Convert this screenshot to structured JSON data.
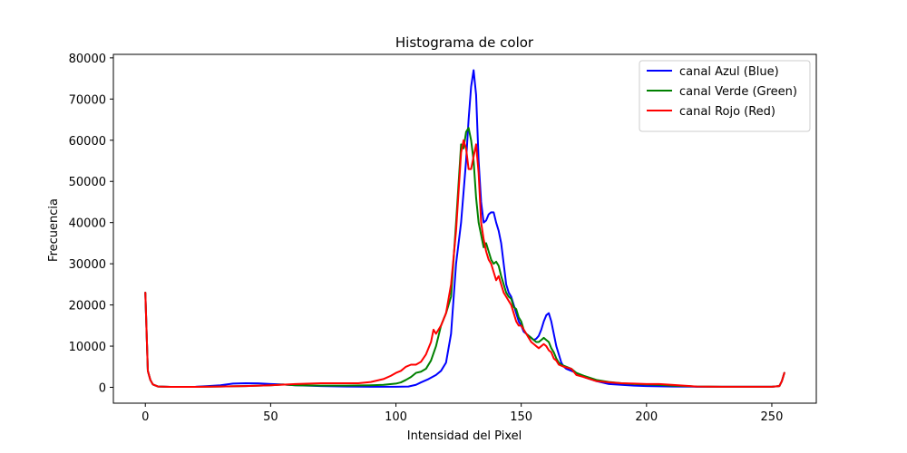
{
  "chart_data": {
    "type": "line",
    "title": "Histograma de color",
    "xlabel": "Intensidad del Pixel",
    "ylabel": "Frecuencia",
    "xlim": [
      -12.75,
      267.75
    ],
    "ylim": [
      -3850,
      80850
    ],
    "xticks": [
      0,
      50,
      100,
      150,
      200,
      250
    ],
    "yticks": [
      0,
      10000,
      20000,
      30000,
      40000,
      50000,
      60000,
      70000,
      80000
    ],
    "legend_position": "top-right",
    "series": [
      {
        "name": "canal Azul (Blue)",
        "color": "#0000ff",
        "points": [
          [
            0,
            23000
          ],
          [
            1,
            4000
          ],
          [
            2,
            1800
          ],
          [
            3,
            700
          ],
          [
            5,
            200
          ],
          [
            10,
            100
          ],
          [
            20,
            150
          ],
          [
            25,
            300
          ],
          [
            30,
            500
          ],
          [
            35,
            900
          ],
          [
            40,
            1000
          ],
          [
            45,
            950
          ],
          [
            50,
            800
          ],
          [
            55,
            700
          ],
          [
            60,
            500
          ],
          [
            70,
            300
          ],
          [
            80,
            200
          ],
          [
            90,
            150
          ],
          [
            100,
            150
          ],
          [
            105,
            200
          ],
          [
            108,
            600
          ],
          [
            110,
            1200
          ],
          [
            113,
            2000
          ],
          [
            116,
            3000
          ],
          [
            118,
            4000
          ],
          [
            120,
            6000
          ],
          [
            122,
            13000
          ],
          [
            124,
            30000
          ],
          [
            126,
            40000
          ],
          [
            128,
            55000
          ],
          [
            129,
            65000
          ],
          [
            130,
            73000
          ],
          [
            131,
            77000
          ],
          [
            132,
            71000
          ],
          [
            133,
            55000
          ],
          [
            134,
            45000
          ],
          [
            135,
            40000
          ],
          [
            136,
            40500
          ],
          [
            137,
            42000
          ],
          [
            138,
            42500
          ],
          [
            139,
            42500
          ],
          [
            140,
            40000
          ],
          [
            141,
            38000
          ],
          [
            142,
            35000
          ],
          [
            143,
            30000
          ],
          [
            144,
            25000
          ],
          [
            145,
            23000
          ],
          [
            146,
            22000
          ],
          [
            147,
            20000
          ],
          [
            148,
            18000
          ],
          [
            149,
            16000
          ],
          [
            150,
            15000
          ],
          [
            151,
            13500
          ],
          [
            152,
            13000
          ],
          [
            153,
            12500
          ],
          [
            154,
            12000
          ],
          [
            155,
            11500
          ],
          [
            156,
            11800
          ],
          [
            157,
            12500
          ],
          [
            158,
            14000
          ],
          [
            159,
            16000
          ],
          [
            160,
            17500
          ],
          [
            161,
            18000
          ],
          [
            162,
            16000
          ],
          [
            163,
            13000
          ],
          [
            164,
            10000
          ],
          [
            165,
            8000
          ],
          [
            166,
            6000
          ],
          [
            167,
            5000
          ],
          [
            168,
            4500
          ],
          [
            170,
            4000
          ],
          [
            172,
            3500
          ],
          [
            175,
            2500
          ],
          [
            180,
            1500
          ],
          [
            185,
            800
          ],
          [
            190,
            600
          ],
          [
            195,
            400
          ],
          [
            200,
            300
          ],
          [
            210,
            200
          ],
          [
            220,
            150
          ],
          [
            230,
            150
          ],
          [
            240,
            150
          ],
          [
            250,
            150
          ],
          [
            253,
            300
          ],
          [
            254,
            1500
          ],
          [
            255,
            3500
          ]
        ]
      },
      {
        "name": "canal Verde (Green)",
        "color": "#008000",
        "points": [
          [
            0,
            23000
          ],
          [
            1,
            4000
          ],
          [
            2,
            1800
          ],
          [
            3,
            700
          ],
          [
            5,
            200
          ],
          [
            10,
            100
          ],
          [
            20,
            100
          ],
          [
            30,
            200
          ],
          [
            40,
            300
          ],
          [
            50,
            500
          ],
          [
            55,
            700
          ],
          [
            60,
            500
          ],
          [
            70,
            400
          ],
          [
            80,
            400
          ],
          [
            90,
            500
          ],
          [
            95,
            600
          ],
          [
            100,
            900
          ],
          [
            102,
            1200
          ],
          [
            104,
            1800
          ],
          [
            106,
            2500
          ],
          [
            108,
            3500
          ],
          [
            110,
            3800
          ],
          [
            112,
            4500
          ],
          [
            114,
            6500
          ],
          [
            116,
            10000
          ],
          [
            118,
            15000
          ],
          [
            120,
            18000
          ],
          [
            122,
            22000
          ],
          [
            124,
            40000
          ],
          [
            126,
            59000
          ],
          [
            127,
            58000
          ],
          [
            128,
            62000
          ],
          [
            129,
            63000
          ],
          [
            130,
            60000
          ],
          [
            131,
            55000
          ],
          [
            132,
            46000
          ],
          [
            133,
            40000
          ],
          [
            134,
            37000
          ],
          [
            135,
            34000
          ],
          [
            136,
            35000
          ],
          [
            137,
            33000
          ],
          [
            138,
            31000
          ],
          [
            139,
            30000
          ],
          [
            140,
            30500
          ],
          [
            141,
            29500
          ],
          [
            142,
            27000
          ],
          [
            143,
            25000
          ],
          [
            144,
            23000
          ],
          [
            145,
            22000
          ],
          [
            146,
            21500
          ],
          [
            147,
            19500
          ],
          [
            148,
            19000
          ],
          [
            149,
            17000
          ],
          [
            150,
            16000
          ],
          [
            151,
            14000
          ],
          [
            152,
            13000
          ],
          [
            153,
            12500
          ],
          [
            154,
            12000
          ],
          [
            155,
            11500
          ],
          [
            156,
            11000
          ],
          [
            157,
            11000
          ],
          [
            158,
            11500
          ],
          [
            159,
            12000
          ],
          [
            160,
            11500
          ],
          [
            161,
            11000
          ],
          [
            162,
            9500
          ],
          [
            163,
            8500
          ],
          [
            164,
            7000
          ],
          [
            165,
            6000
          ],
          [
            166,
            5500
          ],
          [
            168,
            5000
          ],
          [
            170,
            4500
          ],
          [
            172,
            3500
          ],
          [
            175,
            2800
          ],
          [
            180,
            1800
          ],
          [
            185,
            1300
          ],
          [
            190,
            1000
          ],
          [
            195,
            800
          ],
          [
            200,
            700
          ],
          [
            205,
            600
          ],
          [
            210,
            400
          ],
          [
            220,
            200
          ],
          [
            230,
            150
          ],
          [
            240,
            150
          ],
          [
            250,
            150
          ],
          [
            253,
            300
          ],
          [
            254,
            1500
          ],
          [
            255,
            3500
          ]
        ]
      },
      {
        "name": "canal Rojo (Red)",
        "color": "#ff0000",
        "points": [
          [
            0,
            23000
          ],
          [
            1,
            4000
          ],
          [
            2,
            1800
          ],
          [
            3,
            700
          ],
          [
            5,
            200
          ],
          [
            10,
            100
          ],
          [
            20,
            100
          ],
          [
            30,
            200
          ],
          [
            40,
            300
          ],
          [
            50,
            500
          ],
          [
            60,
            800
          ],
          [
            70,
            1000
          ],
          [
            80,
            1000
          ],
          [
            85,
            1000
          ],
          [
            90,
            1300
          ],
          [
            95,
            2000
          ],
          [
            98,
            2800
          ],
          [
            100,
            3500
          ],
          [
            102,
            4000
          ],
          [
            104,
            5000
          ],
          [
            106,
            5500
          ],
          [
            108,
            5500
          ],
          [
            110,
            6200
          ],
          [
            112,
            8000
          ],
          [
            114,
            11000
          ],
          [
            115,
            14000
          ],
          [
            116,
            13000
          ],
          [
            118,
            15000
          ],
          [
            120,
            18000
          ],
          [
            122,
            25000
          ],
          [
            124,
            38000
          ],
          [
            126,
            57000
          ],
          [
            127,
            60000
          ],
          [
            128,
            58000
          ],
          [
            129,
            53000
          ],
          [
            130,
            53000
          ],
          [
            131,
            56000
          ],
          [
            132,
            59000
          ],
          [
            133,
            52000
          ],
          [
            134,
            40000
          ],
          [
            135,
            36000
          ],
          [
            136,
            33000
          ],
          [
            137,
            31000
          ],
          [
            138,
            30000
          ],
          [
            139,
            28000
          ],
          [
            140,
            26000
          ],
          [
            141,
            27000
          ],
          [
            142,
            25000
          ],
          [
            143,
            23000
          ],
          [
            144,
            22000
          ],
          [
            145,
            21000
          ],
          [
            146,
            20000
          ],
          [
            147,
            18000
          ],
          [
            148,
            16000
          ],
          [
            149,
            15000
          ],
          [
            150,
            15000
          ],
          [
            151,
            14000
          ],
          [
            152,
            13000
          ],
          [
            153,
            12000
          ],
          [
            154,
            11000
          ],
          [
            155,
            10500
          ],
          [
            156,
            10000
          ],
          [
            157,
            9500
          ],
          [
            158,
            10000
          ],
          [
            159,
            10500
          ],
          [
            160,
            10000
          ],
          [
            161,
            9000
          ],
          [
            162,
            8500
          ],
          [
            163,
            7000
          ],
          [
            164,
            6500
          ],
          [
            165,
            5500
          ],
          [
            167,
            5000
          ],
          [
            170,
            4500
          ],
          [
            172,
            3000
          ],
          [
            175,
            2500
          ],
          [
            180,
            1500
          ],
          [
            185,
            1200
          ],
          [
            190,
            1000
          ],
          [
            195,
            900
          ],
          [
            200,
            800
          ],
          [
            205,
            800
          ],
          [
            210,
            600
          ],
          [
            220,
            200
          ],
          [
            230,
            150
          ],
          [
            240,
            150
          ],
          [
            250,
            150
          ],
          [
            253,
            300
          ],
          [
            254,
            1500
          ],
          [
            255,
            3500
          ]
        ]
      }
    ]
  }
}
